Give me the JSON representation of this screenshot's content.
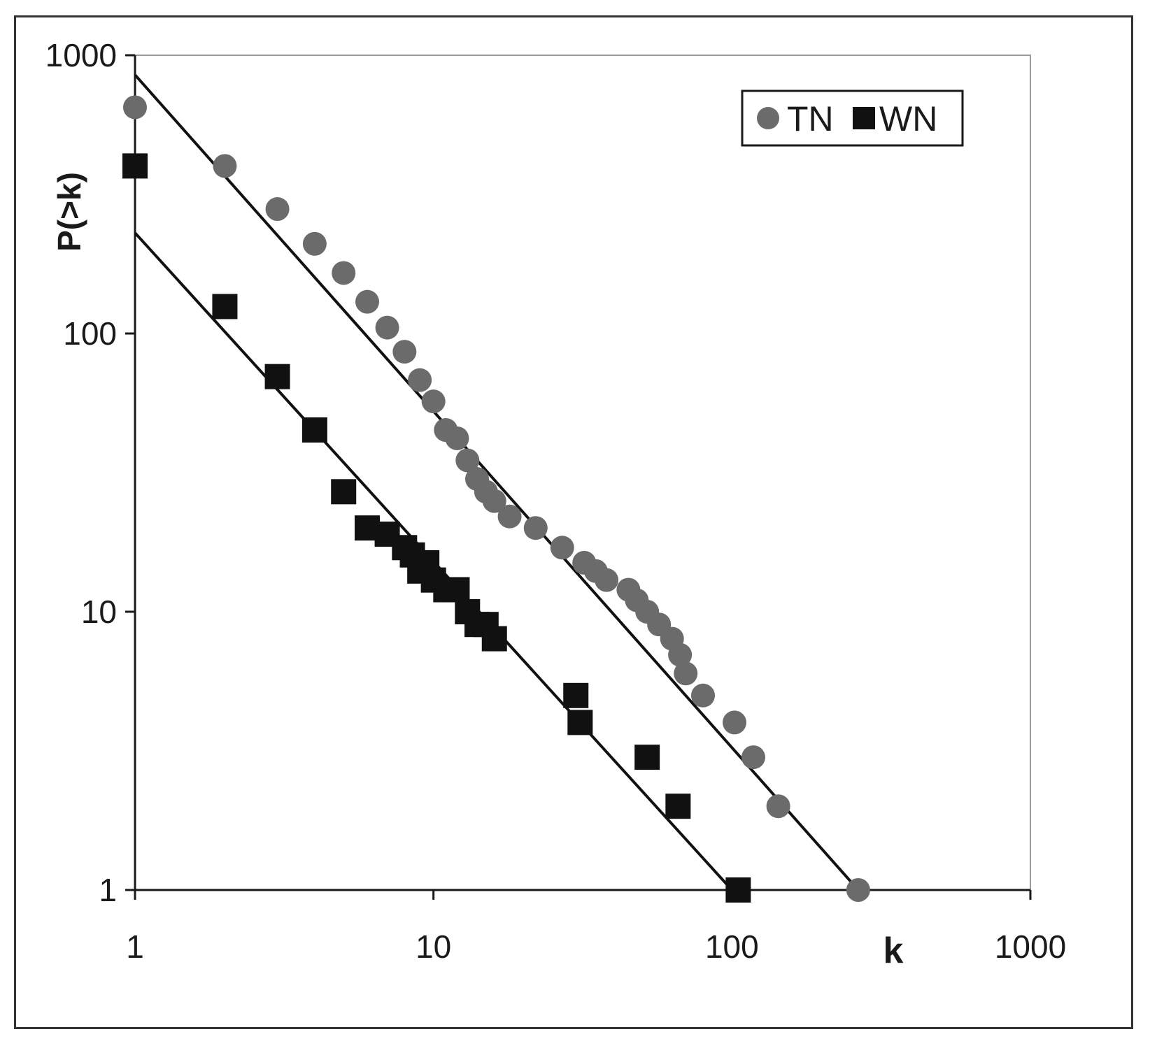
{
  "chart_data": {
    "type": "scatter",
    "x_scale": "log",
    "y_scale": "log",
    "xlabel": "k",
    "ylabel": "P(>k)",
    "xlim": [
      1,
      1000
    ],
    "ylim": [
      1,
      1000
    ],
    "x_ticks": [
      "1",
      "10",
      "100",
      "1000"
    ],
    "y_ticks": [
      "1",
      "10",
      "100",
      "1000"
    ],
    "grid": false,
    "legend_position": "top-right",
    "series": [
      {
        "name": "TN",
        "marker": "circle",
        "color": "#6b6b6b",
        "points": [
          [
            1,
            650
          ],
          [
            2,
            400
          ],
          [
            3,
            280
          ],
          [
            4,
            210
          ],
          [
            5,
            165
          ],
          [
            6,
            130
          ],
          [
            7,
            105
          ],
          [
            8,
            86
          ],
          [
            9,
            68
          ],
          [
            10,
            57
          ],
          [
            11,
            45
          ],
          [
            12,
            42
          ],
          [
            13,
            35
          ],
          [
            14,
            30
          ],
          [
            15,
            27
          ],
          [
            16,
            25
          ],
          [
            18,
            22
          ],
          [
            22,
            20
          ],
          [
            27,
            17
          ],
          [
            32,
            15
          ],
          [
            35,
            14
          ],
          [
            38,
            13
          ],
          [
            45,
            12
          ],
          [
            48,
            11
          ],
          [
            52,
            10
          ],
          [
            57,
            9
          ],
          [
            63,
            8
          ],
          [
            67,
            7
          ],
          [
            70,
            6
          ],
          [
            80,
            5
          ],
          [
            102,
            4
          ],
          [
            118,
            3
          ],
          [
            143,
            2
          ],
          [
            265,
            1
          ]
        ],
        "fit_line": [
          [
            1,
            850
          ],
          [
            265,
            1
          ]
        ]
      },
      {
        "name": "WN",
        "marker": "square",
        "color": "#111111",
        "points": [
          [
            1,
            400
          ],
          [
            2,
            125
          ],
          [
            3,
            70
          ],
          [
            4,
            45
          ],
          [
            5,
            27
          ],
          [
            6,
            20
          ],
          [
            7,
            19
          ],
          [
            8,
            17
          ],
          [
            8.5,
            16
          ],
          [
            9,
            14
          ],
          [
            9.5,
            15
          ],
          [
            10,
            13
          ],
          [
            11,
            12
          ],
          [
            12,
            12
          ],
          [
            13,
            10
          ],
          [
            14,
            9
          ],
          [
            15,
            9
          ],
          [
            16,
            8
          ],
          [
            30,
            5
          ],
          [
            31,
            4
          ],
          [
            52,
            3
          ],
          [
            66,
            2
          ],
          [
            105,
            1
          ]
        ],
        "fit_line": [
          [
            1,
            230
          ],
          [
            100,
            1
          ]
        ]
      }
    ]
  }
}
